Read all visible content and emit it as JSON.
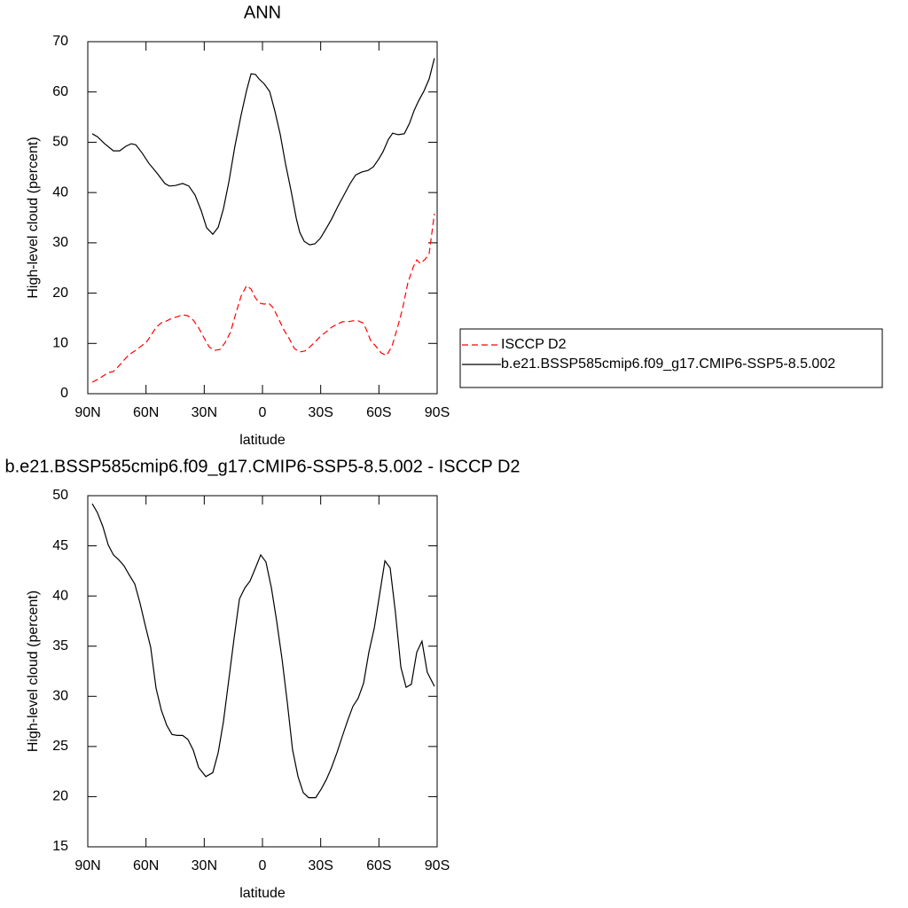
{
  "chart_data": [
    {
      "type": "line",
      "title": "ANN",
      "x_label": "latitude",
      "y_label": "High-level cloud (percent)",
      "xlim": [
        90,
        -90
      ],
      "ylim": [
        0,
        70
      ],
      "xticks": [
        {
          "value": 90,
          "label": "90N"
        },
        {
          "value": 60,
          "label": "60N"
        },
        {
          "value": 30,
          "label": "30N"
        },
        0,
        {
          "value": -30,
          "label": "30S"
        },
        {
          "value": -60,
          "label": "60S"
        },
        {
          "value": -90,
          "label": "90S"
        }
      ],
      "yticks": [
        0,
        10,
        20,
        30,
        40,
        50,
        60,
        70
      ],
      "legend": "right",
      "series": [
        {
          "name": "ISCCP D2",
          "color": "#ff0000",
          "line_style": "dashed",
          "x": [
            87.7,
            85.0,
            82.2,
            79.5,
            76.8,
            74.0,
            71.3,
            68.6,
            65.8,
            63.1,
            59.9,
            57.6,
            54.8,
            52.1,
            49.3,
            46.6,
            43.9,
            41.1,
            38.4,
            35.6,
            32.9,
            30.1,
            27.4,
            24.7,
            21.9,
            19.2,
            16.4,
            13.7,
            11.0,
            8.2,
            5.9,
            3.7,
            1.4,
            -0.9,
            -3.2,
            -5.5,
            -8.2,
            -11.0,
            -13.7,
            -16.4,
            -19.2,
            -21.9,
            -24.7,
            -27.4,
            -30.1,
            -32.9,
            -35.6,
            -38.4,
            -41.1,
            -43.9,
            -46.6,
            -49.3,
            -52.1,
            -53.9,
            -55.7,
            -58.5,
            -61.2,
            -63.9,
            -66.7,
            -69.4,
            -72.2,
            -74.9,
            -77.7,
            -79.5,
            -81.3,
            -84.0,
            -85.9,
            -88.6
          ],
          "values": [
            2.3,
            2.8,
            3.5,
            4.2,
            4.4,
            5.5,
            6.7,
            7.8,
            8.5,
            9.3,
            10.2,
            11.5,
            13.2,
            14.1,
            14.5,
            15.0,
            15.3,
            15.7,
            15.5,
            14.6,
            13.1,
            11.1,
            9.3,
            8.6,
            8.8,
            10.2,
            12.3,
            16.0,
            19.4,
            21.5,
            20.8,
            19.1,
            18.0,
            17.8,
            18.0,
            17.1,
            15.0,
            12.7,
            11.0,
            9.0,
            8.3,
            8.5,
            9.4,
            10.4,
            11.5,
            12.3,
            13.2,
            13.8,
            14.3,
            14.3,
            14.5,
            14.5,
            14.0,
            12.4,
            10.6,
            9.4,
            8.1,
            7.6,
            9.4,
            12.9,
            16.9,
            22.0,
            25.2,
            26.6,
            25.9,
            26.8,
            27.9,
            35.8
          ]
        },
        {
          "name": "b.e21.BSSP585cmip6.f09_g17.CMIP6-SSP5-8.5.002",
          "color": "#000000",
          "line_style": "solid",
          "x": [
            87.7,
            85.0,
            81.3,
            76.8,
            73.6,
            70.4,
            67.6,
            65.3,
            62.1,
            58.5,
            54.4,
            50.3,
            48.0,
            44.8,
            41.1,
            37.9,
            34.7,
            31.5,
            28.8,
            25.6,
            22.8,
            20.1,
            17.3,
            14.2,
            11.0,
            8.2,
            5.9,
            3.6,
            1.8,
            -0.9,
            -3.7,
            -6.4,
            -9.2,
            -11.9,
            -14.7,
            -17.4,
            -19.2,
            -21.5,
            -24.3,
            -27.0,
            -29.8,
            -32.5,
            -35.6,
            -38.8,
            -42.0,
            -45.2,
            -48.0,
            -51.2,
            -54.4,
            -57.1,
            -59.8,
            -62.1,
            -64.9,
            -67.1,
            -69.9,
            -73.1,
            -75.8,
            -78.1,
            -80.4,
            -83.1,
            -85.9,
            -88.6
          ],
          "values": [
            51.7,
            51.1,
            49.7,
            48.3,
            48.3,
            49.2,
            49.7,
            49.5,
            47.9,
            45.8,
            43.9,
            41.8,
            41.3,
            41.4,
            41.8,
            41.3,
            39.5,
            36.3,
            33.0,
            31.7,
            33.1,
            36.8,
            42.1,
            49.2,
            55.4,
            60.3,
            63.6,
            63.5,
            62.6,
            61.6,
            60.1,
            56.2,
            51.5,
            45.7,
            40.4,
            34.9,
            32.1,
            30.3,
            29.6,
            29.8,
            30.9,
            32.6,
            34.7,
            37.2,
            39.5,
            41.8,
            43.5,
            44.1,
            44.4,
            45.1,
            46.6,
            48.1,
            50.6,
            51.8,
            51.5,
            51.7,
            53.8,
            56.3,
            58.2,
            60.1,
            62.6,
            66.7
          ]
        }
      ]
    },
    {
      "type": "line",
      "title": "b.e21.BSSP585cmip6.f09_g17.CMIP6-SSP5-8.5.002 - ISCCP D2",
      "x_label": "latitude",
      "y_label": "High-level cloud (percent)",
      "xlim": [
        90,
        -90
      ],
      "ylim": [
        15,
        50
      ],
      "xticks": [
        {
          "value": 90,
          "label": "90N"
        },
        {
          "value": 60,
          "label": "60N"
        },
        {
          "value": 30,
          "label": "30N"
        },
        0,
        {
          "value": -30,
          "label": "30S"
        },
        {
          "value": -60,
          "label": "60S"
        },
        {
          "value": -90,
          "label": "90S"
        }
      ],
      "yticks": [
        15,
        20,
        25,
        30,
        35,
        40,
        45,
        50
      ],
      "color": "#000000",
      "x": [
        87.7,
        85.0,
        82.2,
        79.5,
        76.8,
        74.0,
        71.3,
        68.6,
        65.8,
        63.1,
        60.3,
        57.6,
        54.8,
        52.1,
        49.3,
        46.6,
        43.9,
        41.1,
        38.4,
        35.6,
        32.9,
        29.2,
        25.6,
        22.8,
        20.1,
        17.3,
        14.6,
        11.9,
        9.1,
        6.4,
        3.6,
        0.9,
        -1.8,
        -4.6,
        -7.3,
        -10.1,
        -12.8,
        -15.5,
        -18.3,
        -21.0,
        -23.8,
        -27.4,
        -30.1,
        -32.9,
        -35.6,
        -38.4,
        -41.1,
        -43.9,
        -46.6,
        -49.3,
        -52.1,
        -54.8,
        -57.6,
        -60.3,
        -63.1,
        -65.8,
        -68.5,
        -71.3,
        -74.0,
        -76.7,
        -79.5,
        -82.2,
        -84.9,
        -88.6
      ],
      "values": [
        49.2,
        48.3,
        46.9,
        45.1,
        44.1,
        43.6,
        43.0,
        42.1,
        41.2,
        39.3,
        37.0,
        34.9,
        30.8,
        28.6,
        27.1,
        26.2,
        26.1,
        26.1,
        25.7,
        24.6,
        22.9,
        22.0,
        22.4,
        24.4,
        27.5,
        31.7,
        35.8,
        39.7,
        40.8,
        41.5,
        42.8,
        44.1,
        43.4,
        40.8,
        37.5,
        33.7,
        29.4,
        24.7,
        22.0,
        20.4,
        19.9,
        19.9,
        20.7,
        21.7,
        22.9,
        24.4,
        26.0,
        27.6,
        29.0,
        29.8,
        31.3,
        34.4,
        36.8,
        40.1,
        43.5,
        42.8,
        38.4,
        32.9,
        30.9,
        31.2,
        34.4,
        35.5,
        32.4,
        31.0
      ]
    }
  ]
}
